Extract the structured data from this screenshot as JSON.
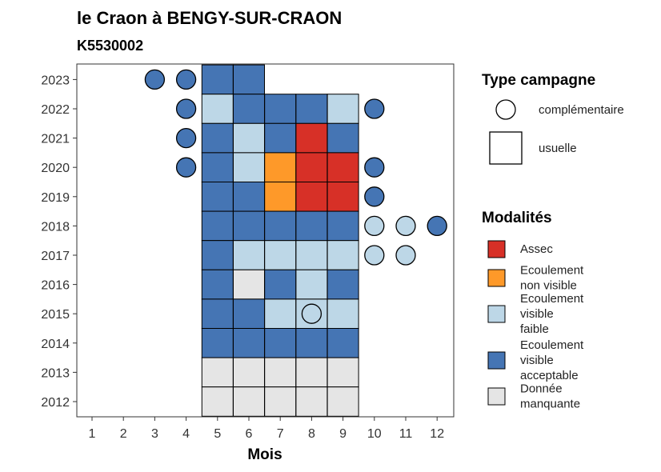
{
  "chart_data": {
    "type": "heatmap",
    "title": "le Craon à BENGY-SUR-CRAON",
    "subtitle": "K5530002",
    "xlabel": "Mois",
    "ylabel": "",
    "x_ticks": [
      "1",
      "2",
      "3",
      "4",
      "5",
      "6",
      "7",
      "8",
      "9",
      "10",
      "11",
      "12"
    ],
    "y_ticks": [
      "2012",
      "2013",
      "2014",
      "2015",
      "2016",
      "2017",
      "2018",
      "2019",
      "2020",
      "2021",
      "2022",
      "2023"
    ],
    "grid": false,
    "legend_placement": "right",
    "colors": {
      "Assec": "#d73027",
      "Ecoulement non visible": "#fe9929",
      "Ecoulement visible faible": "#bdd7e7",
      "Ecoulement visible acceptable": "#4575b4",
      "Donnée manquante": "#e5e5e5"
    },
    "legend_type": {
      "title": "Type campagne",
      "items": [
        {
          "key": "complementaire",
          "label": "complémentaire",
          "shape": "circle"
        },
        {
          "key": "usuelle",
          "label": "usuelle",
          "shape": "square"
        }
      ]
    },
    "legend_modalites": {
      "title": "Modalités",
      "items": [
        {
          "key": "Assec",
          "lines": [
            "Assec"
          ]
        },
        {
          "key": "Ecoulement non visible",
          "lines": [
            "Ecoulement",
            "non visible"
          ]
        },
        {
          "key": "Ecoulement visible faible",
          "lines": [
            "Ecoulement",
            "visible",
            "faible"
          ]
        },
        {
          "key": "Ecoulement visible acceptable",
          "lines": [
            "Ecoulement",
            "visible",
            "acceptable"
          ]
        },
        {
          "key": "Donnée manquante",
          "lines": [
            "Donnée",
            "manquante"
          ]
        }
      ]
    },
    "usuelle": [
      {
        "year": 2023,
        "month": 5,
        "value": "Ecoulement visible acceptable"
      },
      {
        "year": 2023,
        "month": 6,
        "value": "Ecoulement visible acceptable"
      },
      {
        "year": 2022,
        "month": 5,
        "value": "Ecoulement visible faible"
      },
      {
        "year": 2022,
        "month": 6,
        "value": "Ecoulement visible acceptable"
      },
      {
        "year": 2022,
        "month": 7,
        "value": "Ecoulement visible acceptable"
      },
      {
        "year": 2022,
        "month": 8,
        "value": "Ecoulement visible acceptable"
      },
      {
        "year": 2022,
        "month": 9,
        "value": "Ecoulement visible faible"
      },
      {
        "year": 2021,
        "month": 5,
        "value": "Ecoulement visible acceptable"
      },
      {
        "year": 2021,
        "month": 6,
        "value": "Ecoulement visible faible"
      },
      {
        "year": 2021,
        "month": 7,
        "value": "Ecoulement visible acceptable"
      },
      {
        "year": 2021,
        "month": 8,
        "value": "Assec"
      },
      {
        "year": 2021,
        "month": 9,
        "value": "Ecoulement visible acceptable"
      },
      {
        "year": 2020,
        "month": 5,
        "value": "Ecoulement visible acceptable"
      },
      {
        "year": 2020,
        "month": 6,
        "value": "Ecoulement visible faible"
      },
      {
        "year": 2020,
        "month": 7,
        "value": "Ecoulement non visible"
      },
      {
        "year": 2020,
        "month": 8,
        "value": "Assec"
      },
      {
        "year": 2020,
        "month": 9,
        "value": "Assec"
      },
      {
        "year": 2019,
        "month": 5,
        "value": "Ecoulement visible acceptable"
      },
      {
        "year": 2019,
        "month": 6,
        "value": "Ecoulement visible acceptable"
      },
      {
        "year": 2019,
        "month": 7,
        "value": "Ecoulement non visible"
      },
      {
        "year": 2019,
        "month": 8,
        "value": "Assec"
      },
      {
        "year": 2019,
        "month": 9,
        "value": "Assec"
      },
      {
        "year": 2018,
        "month": 5,
        "value": "Ecoulement visible acceptable"
      },
      {
        "year": 2018,
        "month": 6,
        "value": "Ecoulement visible acceptable"
      },
      {
        "year": 2018,
        "month": 7,
        "value": "Ecoulement visible acceptable"
      },
      {
        "year": 2018,
        "month": 8,
        "value": "Ecoulement visible acceptable"
      },
      {
        "year": 2018,
        "month": 9,
        "value": "Ecoulement visible acceptable"
      },
      {
        "year": 2017,
        "month": 5,
        "value": "Ecoulement visible acceptable"
      },
      {
        "year": 2017,
        "month": 6,
        "value": "Ecoulement visible faible"
      },
      {
        "year": 2017,
        "month": 7,
        "value": "Ecoulement visible faible"
      },
      {
        "year": 2017,
        "month": 8,
        "value": "Ecoulement visible faible"
      },
      {
        "year": 2017,
        "month": 9,
        "value": "Ecoulement visible faible"
      },
      {
        "year": 2016,
        "month": 5,
        "value": "Ecoulement visible acceptable"
      },
      {
        "year": 2016,
        "month": 6,
        "value": "Donnée manquante"
      },
      {
        "year": 2016,
        "month": 7,
        "value": "Ecoulement visible acceptable"
      },
      {
        "year": 2016,
        "month": 8,
        "value": "Ecoulement visible faible"
      },
      {
        "year": 2016,
        "month": 9,
        "value": "Ecoulement visible acceptable"
      },
      {
        "year": 2015,
        "month": 5,
        "value": "Ecoulement visible acceptable"
      },
      {
        "year": 2015,
        "month": 6,
        "value": "Ecoulement visible acceptable"
      },
      {
        "year": 2015,
        "month": 7,
        "value": "Ecoulement visible faible"
      },
      {
        "year": 2015,
        "month": 8,
        "value": "Ecoulement visible faible"
      },
      {
        "year": 2015,
        "month": 9,
        "value": "Ecoulement visible faible"
      },
      {
        "year": 2014,
        "month": 5,
        "value": "Ecoulement visible acceptable"
      },
      {
        "year": 2014,
        "month": 6,
        "value": "Ecoulement visible acceptable"
      },
      {
        "year": 2014,
        "month": 7,
        "value": "Ecoulement visible acceptable"
      },
      {
        "year": 2014,
        "month": 8,
        "value": "Ecoulement visible acceptable"
      },
      {
        "year": 2014,
        "month": 9,
        "value": "Ecoulement visible acceptable"
      },
      {
        "year": 2013,
        "month": 5,
        "value": "Donnée manquante"
      },
      {
        "year": 2013,
        "month": 6,
        "value": "Donnée manquante"
      },
      {
        "year": 2013,
        "month": 7,
        "value": "Donnée manquante"
      },
      {
        "year": 2013,
        "month": 8,
        "value": "Donnée manquante"
      },
      {
        "year": 2013,
        "month": 9,
        "value": "Donnée manquante"
      },
      {
        "year": 2012,
        "month": 5,
        "value": "Donnée manquante"
      },
      {
        "year": 2012,
        "month": 6,
        "value": "Donnée manquante"
      },
      {
        "year": 2012,
        "month": 7,
        "value": "Donnée manquante"
      },
      {
        "year": 2012,
        "month": 8,
        "value": "Donnée manquante"
      },
      {
        "year": 2012,
        "month": 9,
        "value": "Donnée manquante"
      }
    ],
    "complementaire": [
      {
        "year": 2023,
        "month": 3,
        "value": "Ecoulement visible acceptable"
      },
      {
        "year": 2023,
        "month": 4,
        "value": "Ecoulement visible acceptable"
      },
      {
        "year": 2022,
        "month": 4,
        "value": "Ecoulement visible acceptable"
      },
      {
        "year": 2022,
        "month": 10,
        "value": "Ecoulement visible acceptable"
      },
      {
        "year": 2021,
        "month": 4,
        "value": "Ecoulement visible acceptable"
      },
      {
        "year": 2020,
        "month": 4,
        "value": "Ecoulement visible acceptable"
      },
      {
        "year": 2020,
        "month": 10,
        "value": "Ecoulement visible acceptable"
      },
      {
        "year": 2019,
        "month": 10,
        "value": "Ecoulement visible acceptable"
      },
      {
        "year": 2018,
        "month": 10,
        "value": "Ecoulement visible faible"
      },
      {
        "year": 2018,
        "month": 11,
        "value": "Ecoulement visible faible"
      },
      {
        "year": 2018,
        "month": 12,
        "value": "Ecoulement visible acceptable"
      },
      {
        "year": 2017,
        "month": 10,
        "value": "Ecoulement visible faible"
      },
      {
        "year": 2017,
        "month": 11,
        "value": "Ecoulement visible faible"
      },
      {
        "year": 2015,
        "month": 8,
        "value": "Ecoulement visible faible"
      }
    ]
  }
}
